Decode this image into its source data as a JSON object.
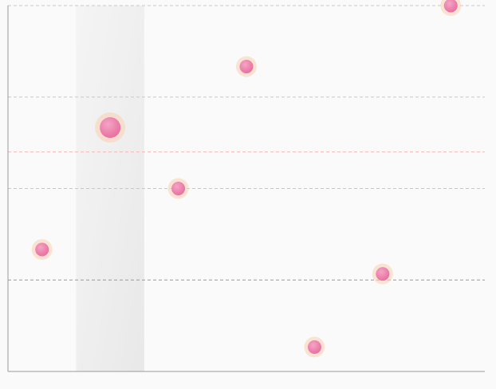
{
  "chart_data": {
    "type": "scatter",
    "title": "",
    "xlabel": "",
    "ylabel": "",
    "x": [
      1,
      2,
      3,
      4,
      5,
      6,
      7
    ],
    "y": [
      20,
      40,
      30,
      50,
      4,
      16,
      60
    ],
    "highlight_index": 1,
    "xlim": [
      0.5,
      7.5
    ],
    "ylim": [
      0,
      60
    ],
    "grid_y": [
      0,
      15,
      30,
      45,
      60
    ],
    "reference_line_y": 36,
    "grid": true,
    "legend": "none",
    "colors": {
      "point_fill": "#ec7fa9",
      "point_halo": "#f9cfb3",
      "reference_line": "#f6b6b6",
      "grid": "#c8c8c8",
      "axis": "#999999",
      "highlight_band": "#ebebeb",
      "background": "#fafafa"
    }
  }
}
